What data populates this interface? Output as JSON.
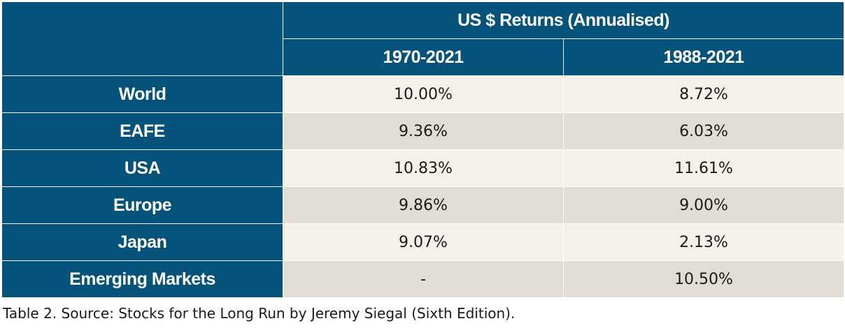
{
  "table": {
    "header": {
      "group_label": "US $ Returns (Annualised)",
      "periods": [
        "1970-2021",
        "1988-2021"
      ]
    },
    "rows": [
      {
        "label": "World",
        "values": [
          "10.00%",
          "8.72%"
        ]
      },
      {
        "label": "EAFE",
        "values": [
          "9.36%",
          "6.03%"
        ]
      },
      {
        "label": "USA",
        "values": [
          "10.83%",
          "11.61%"
        ]
      },
      {
        "label": "Europe",
        "values": [
          "9.86%",
          "9.00%"
        ]
      },
      {
        "label": "Japan",
        "values": [
          "9.07%",
          "2.13%"
        ]
      },
      {
        "label": "Emerging Markets",
        "values": [
          "-",
          "10.50%"
        ]
      }
    ],
    "colors": {
      "header_bg": "#05527a",
      "row_light": "#f3f1e9",
      "row_dark": "#e1ddd4"
    }
  },
  "caption": "Table 2. Source: Stocks for the Long Run by Jeremy Siegal (Sixth Edition)."
}
